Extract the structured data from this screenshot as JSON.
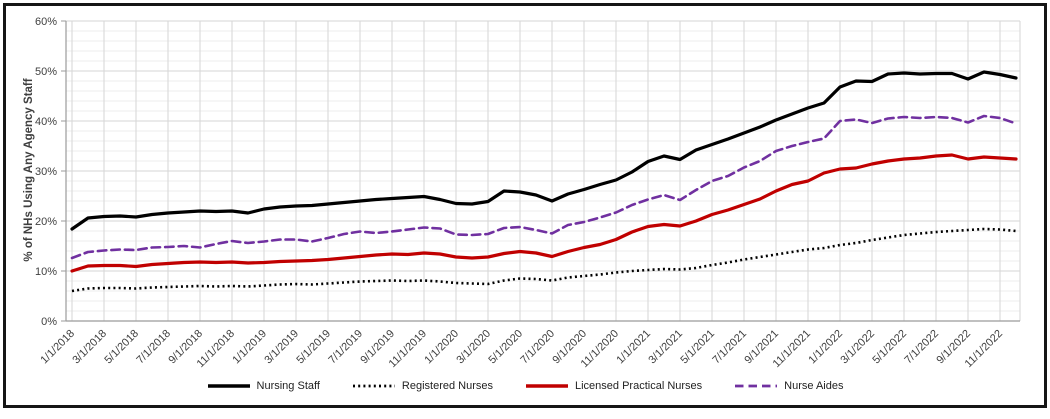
{
  "window": {
    "background": "#ffffff",
    "frame_border_color": "#161616"
  },
  "chart_data": {
    "type": "line",
    "title": "",
    "xlabel": "",
    "ylabel": "% of NHs Using Any Agency Staff",
    "ylim": [
      0,
      60
    ],
    "ytick_step": 10,
    "minor_grid_step": 2,
    "grid": "on",
    "legend_position": "bottom",
    "ytick_labels": [
      "0%",
      "10%",
      "20%",
      "30%",
      "40%",
      "50%",
      "60%"
    ],
    "xtick_labels": [
      "1/1/2018",
      "3/1/2018",
      "5/1/2018",
      "7/1/2018",
      "9/1/2018",
      "11/1/2018",
      "1/1/2019",
      "3/1/2019",
      "5/1/2019",
      "7/1/2019",
      "9/1/2019",
      "11/1/2019",
      "1/1/2020",
      "3/1/2020",
      "5/1/2020",
      "7/1/2020",
      "9/1/2020",
      "11/1/2020",
      "1/1/2021",
      "3/1/2021",
      "5/1/2021",
      "7/1/2021",
      "9/1/2021",
      "11/1/2021",
      "1/1/2022",
      "3/1/2022",
      "5/1/2022",
      "7/1/2022",
      "9/1/2022",
      "11/1/2022"
    ],
    "x": [
      "1/1/2018",
      "2/1/2018",
      "3/1/2018",
      "4/1/2018",
      "5/1/2018",
      "6/1/2018",
      "7/1/2018",
      "8/1/2018",
      "9/1/2018",
      "10/1/2018",
      "11/1/2018",
      "12/1/2018",
      "1/1/2019",
      "2/1/2019",
      "3/1/2019",
      "4/1/2019",
      "5/1/2019",
      "6/1/2019",
      "7/1/2019",
      "8/1/2019",
      "9/1/2019",
      "10/1/2019",
      "11/1/2019",
      "12/1/2019",
      "1/1/2020",
      "2/1/2020",
      "3/1/2020",
      "4/1/2020",
      "5/1/2020",
      "6/1/2020",
      "7/1/2020",
      "8/1/2020",
      "9/1/2020",
      "10/1/2020",
      "11/1/2020",
      "12/1/2020",
      "1/1/2021",
      "2/1/2021",
      "3/1/2021",
      "4/1/2021",
      "5/1/2021",
      "6/1/2021",
      "7/1/2021",
      "8/1/2021",
      "9/1/2021",
      "10/1/2021",
      "11/1/2021",
      "12/1/2021",
      "1/1/2022",
      "2/1/2022",
      "3/1/2022",
      "4/1/2022",
      "5/1/2022",
      "6/1/2022",
      "7/1/2022",
      "8/1/2022",
      "9/1/2022",
      "10/1/2022",
      "11/1/2022",
      "12/1/2022"
    ],
    "series": [
      {
        "name": "Nursing Staff",
        "color": "#000000",
        "style": "solid",
        "values": [
          18.4,
          20.6,
          20.9,
          21.0,
          20.8,
          21.3,
          21.6,
          21.8,
          22.0,
          21.9,
          22.0,
          21.6,
          22.4,
          22.8,
          23.0,
          23.1,
          23.4,
          23.7,
          24.0,
          24.3,
          24.5,
          24.7,
          24.9,
          24.3,
          23.5,
          23.4,
          23.9,
          26.0,
          25.8,
          25.2,
          24.0,
          25.4,
          26.3,
          27.3,
          28.2,
          29.8,
          31.9,
          33.0,
          32.3,
          34.2,
          35.3,
          36.4,
          37.6,
          38.8,
          40.2,
          41.4,
          42.6,
          43.6,
          46.8,
          48.0,
          47.9,
          49.4,
          49.6,
          49.4,
          49.5,
          49.5,
          48.4,
          49.8,
          49.3,
          48.6
        ]
      },
      {
        "name": "Registered Nurses",
        "color": "#000000",
        "style": "dotted",
        "values": [
          6.0,
          6.5,
          6.6,
          6.6,
          6.5,
          6.7,
          6.8,
          6.9,
          7.0,
          6.9,
          7.0,
          6.9,
          7.1,
          7.3,
          7.4,
          7.3,
          7.5,
          7.7,
          7.9,
          8.0,
          8.1,
          8.0,
          8.1,
          7.9,
          7.6,
          7.5,
          7.4,
          8.1,
          8.5,
          8.4,
          8.1,
          8.7,
          9.0,
          9.3,
          9.7,
          10.0,
          10.2,
          10.4,
          10.3,
          10.6,
          11.2,
          11.7,
          12.3,
          12.8,
          13.3,
          13.8,
          14.3,
          14.6,
          15.2,
          15.6,
          16.2,
          16.7,
          17.2,
          17.5,
          17.8,
          18.0,
          18.2,
          18.4,
          18.3,
          18.0
        ]
      },
      {
        "name": "Licensed Practical Nurses",
        "color": "#C00000",
        "style": "solid",
        "values": [
          10.0,
          11.0,
          11.1,
          11.1,
          10.9,
          11.3,
          11.5,
          11.7,
          11.8,
          11.7,
          11.8,
          11.6,
          11.7,
          11.9,
          12.0,
          12.1,
          12.3,
          12.6,
          12.9,
          13.2,
          13.4,
          13.3,
          13.6,
          13.4,
          12.8,
          12.6,
          12.8,
          13.5,
          13.9,
          13.6,
          12.9,
          13.9,
          14.7,
          15.3,
          16.3,
          17.8,
          18.9,
          19.3,
          19.0,
          20.0,
          21.3,
          22.2,
          23.3,
          24.4,
          26.0,
          27.3,
          28.0,
          29.6,
          30.4,
          30.6,
          31.4,
          32.0,
          32.4,
          32.6,
          33.0,
          33.2,
          32.4,
          32.8,
          32.6,
          32.4
        ]
      },
      {
        "name": "Nurse Aides",
        "color": "#7030A0",
        "style": "dashed",
        "values": [
          12.6,
          13.8,
          14.1,
          14.3,
          14.2,
          14.7,
          14.8,
          15.0,
          14.7,
          15.4,
          16.0,
          15.6,
          15.9,
          16.3,
          16.3,
          15.9,
          16.6,
          17.4,
          17.9,
          17.6,
          17.9,
          18.3,
          18.7,
          18.5,
          17.3,
          17.2,
          17.4,
          18.6,
          18.8,
          18.2,
          17.5,
          19.2,
          19.8,
          20.7,
          21.7,
          23.2,
          24.3,
          25.2,
          24.2,
          26.2,
          28.0,
          29.0,
          30.7,
          32.0,
          34.0,
          35.0,
          35.8,
          36.5,
          40.0,
          40.3,
          39.6,
          40.5,
          40.8,
          40.6,
          40.8,
          40.6,
          39.7,
          41.0,
          40.6,
          39.5
        ]
      }
    ]
  }
}
